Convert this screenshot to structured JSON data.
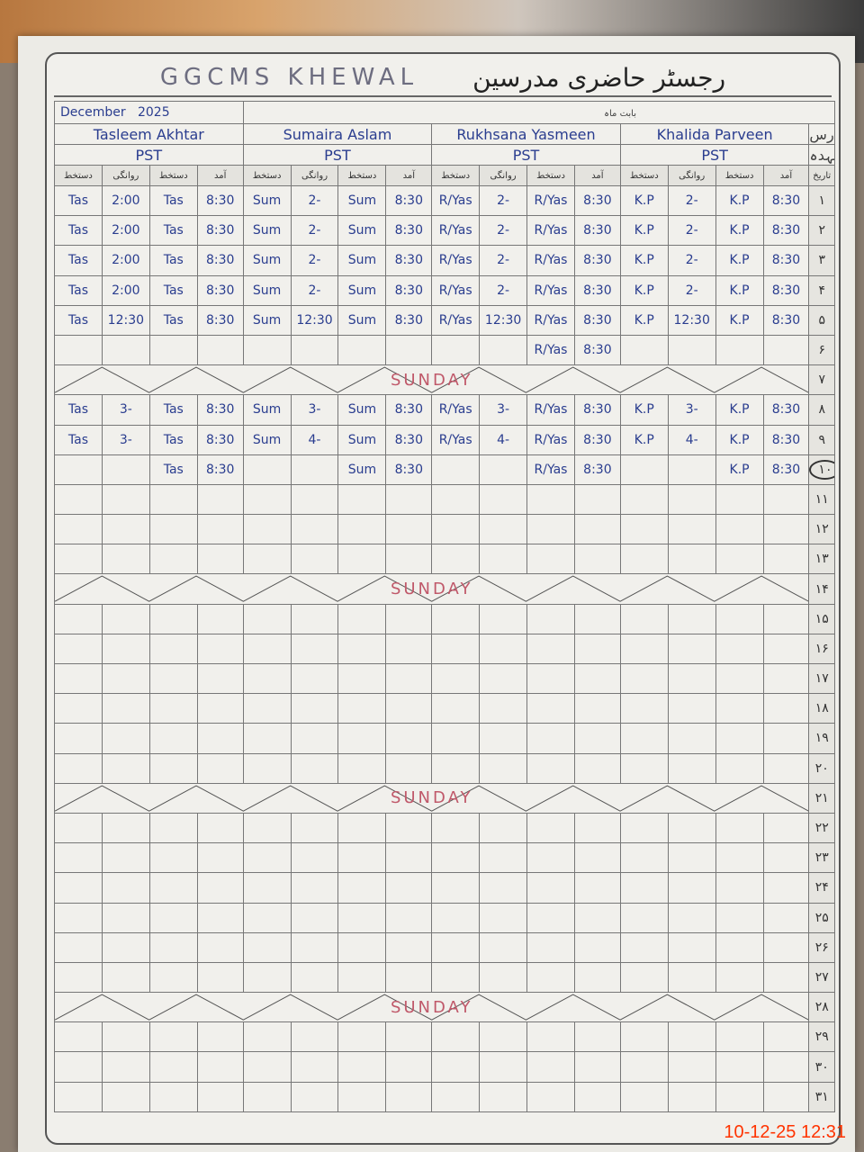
{
  "register": {
    "school": "GGCMS KHEWAL",
    "title_urdu": "رجسٹر حاضری مدرسین",
    "month": "December",
    "year": "2025",
    "month_label_urdu": "بابت ماہ",
    "name_label_urdu": "نام مدرس",
    "designation_label_urdu": "عہدہ",
    "date_label_urdu": "تاریخ",
    "sunday_label": "SUNDAY"
  },
  "teachers": [
    {
      "name": "Tasleem Akhtar",
      "designation": "PST"
    },
    {
      "name": "Sumaira Aslam",
      "designation": "PST"
    },
    {
      "name": "Rukhsana Yasmeen",
      "designation": "PST"
    },
    {
      "name": "Khalida Parveen",
      "designation": "PST"
    }
  ],
  "column_headers": [
    "دستخط",
    "روانگی",
    "دستخط",
    "آمد"
  ],
  "dates": [
    "۱",
    "۲",
    "۳",
    "۴",
    "۵",
    "۶",
    "۷",
    "۸",
    "۹",
    "۱۰",
    "۱۱",
    "۱۲",
    "۱۳",
    "۱۴",
    "۱۵",
    "۱۶",
    "۱۷",
    "۱۸",
    "۱۹",
    "۲۰",
    "۲۱",
    "۲۲",
    "۲۳",
    "۲۴",
    "۲۵",
    "۲۶",
    "۲۷",
    "۲۸",
    "۲۹",
    "۳۰",
    "۳۱"
  ],
  "sundays": [
    7,
    14,
    21,
    28
  ],
  "circled_date": 10,
  "rows": [
    [
      [
        "Tas",
        "2:00",
        "Tas",
        "8:30"
      ],
      [
        "Sum",
        "2-",
        "Sum",
        "8:30"
      ],
      [
        "R/Yas",
        "2-",
        "R/Yas",
        "8:30"
      ],
      [
        "K.P",
        "2-",
        "K.P",
        "8:30"
      ]
    ],
    [
      [
        "Tas",
        "2:00",
        "Tas",
        "8:30"
      ],
      [
        "Sum",
        "2-",
        "Sum",
        "8:30"
      ],
      [
        "R/Yas",
        "2-",
        "R/Yas",
        "8:30"
      ],
      [
        "K.P",
        "2-",
        "K.P",
        "8:30"
      ]
    ],
    [
      [
        "Tas",
        "2:00",
        "Tas",
        "8:30"
      ],
      [
        "Sum",
        "2-",
        "Sum",
        "8:30"
      ],
      [
        "R/Yas",
        "2-",
        "R/Yas",
        "8:30"
      ],
      [
        "K.P",
        "2-",
        "K.P",
        "8:30"
      ]
    ],
    [
      [
        "Tas",
        "2:00",
        "Tas",
        "8:30"
      ],
      [
        "Sum",
        "2-",
        "Sum",
        "8:30"
      ],
      [
        "R/Yas",
        "2-",
        "R/Yas",
        "8:30"
      ],
      [
        "K.P",
        "2-",
        "K.P",
        "8:30"
      ]
    ],
    [
      [
        "Tas",
        "12:30",
        "Tas",
        "8:30"
      ],
      [
        "Sum",
        "12:30",
        "Sum",
        "8:30"
      ],
      [
        "R/Yas",
        "12:30",
        "R/Yas",
        "8:30"
      ],
      [
        "K.P",
        "12:30",
        "K.P",
        "8:30"
      ]
    ],
    [
      [
        "",
        "",
        "",
        ""
      ],
      [
        "",
        "",
        "",
        ""
      ],
      [
        "",
        "",
        "R/Yas",
        "8:30"
      ],
      [
        "",
        "",
        "",
        ""
      ]
    ],
    null,
    [
      [
        "Tas",
        "3-",
        "Tas",
        "8:30"
      ],
      [
        "Sum",
        "3-",
        "Sum",
        "8:30"
      ],
      [
        "R/Yas",
        "3-",
        "R/Yas",
        "8:30"
      ],
      [
        "K.P",
        "3-",
        "K.P",
        "8:30"
      ]
    ],
    [
      [
        "Tas",
        "3-",
        "Tas",
        "8:30"
      ],
      [
        "Sum",
        "4-",
        "Sum",
        "8:30"
      ],
      [
        "R/Yas",
        "4-",
        "R/Yas",
        "8:30"
      ],
      [
        "K.P",
        "4-",
        "K.P",
        "8:30"
      ]
    ],
    [
      [
        "",
        "",
        "Tas",
        "8:30"
      ],
      [
        "",
        "",
        "Sum",
        "8:30"
      ],
      [
        "",
        "",
        "R/Yas",
        "8:30"
      ],
      [
        "",
        "",
        "K.P",
        "8:30"
      ]
    ]
  ],
  "camera_timestamp": "10-12-25  12:31",
  "colors": {
    "ink_blue": "#2a3d8f",
    "sunday_red": "#c0596a",
    "timestamp": "#ff3300"
  }
}
